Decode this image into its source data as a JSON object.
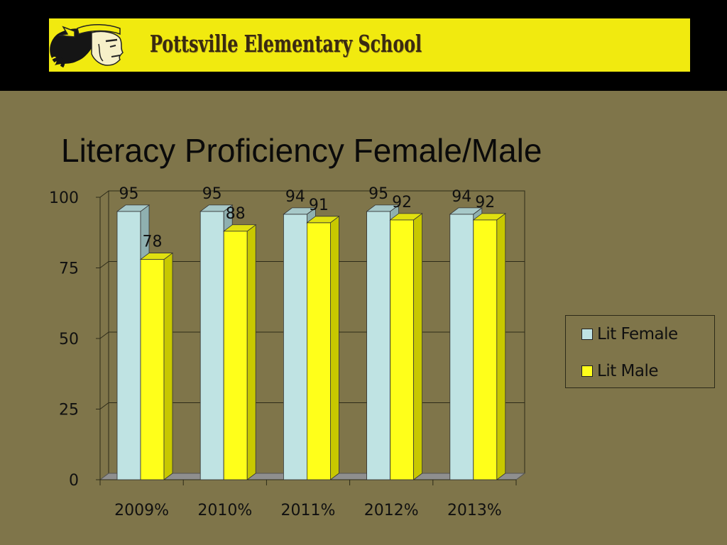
{
  "header": {
    "school_name": "Pottsville Elementary School",
    "logo_icon": "warrior-mascot-logo"
  },
  "slide": {
    "title": "Literacy Proficiency Female/Male"
  },
  "colors": {
    "background": "#7f754a",
    "banner": "#f1ea0f",
    "female": "#bfe3e3",
    "male": "#ffff1a"
  },
  "chart_data": {
    "type": "bar",
    "title": "",
    "xlabel": "",
    "ylabel": "",
    "categories": [
      "2009%",
      "2010%",
      "2011%",
      "2012%",
      "2013%"
    ],
    "series": [
      {
        "name": "Lit Female",
        "values": [
          95,
          95,
          94,
          95,
          94
        ],
        "color": "#bfe3e3"
      },
      {
        "name": "Lit Male",
        "values": [
          78,
          88,
          91,
          92,
          92
        ],
        "color": "#ffff1a"
      }
    ],
    "ylim": [
      0,
      100
    ],
    "yticks": [
      0,
      25,
      50,
      75,
      100
    ],
    "grid": true,
    "legend_position": "right",
    "three_d": true
  }
}
